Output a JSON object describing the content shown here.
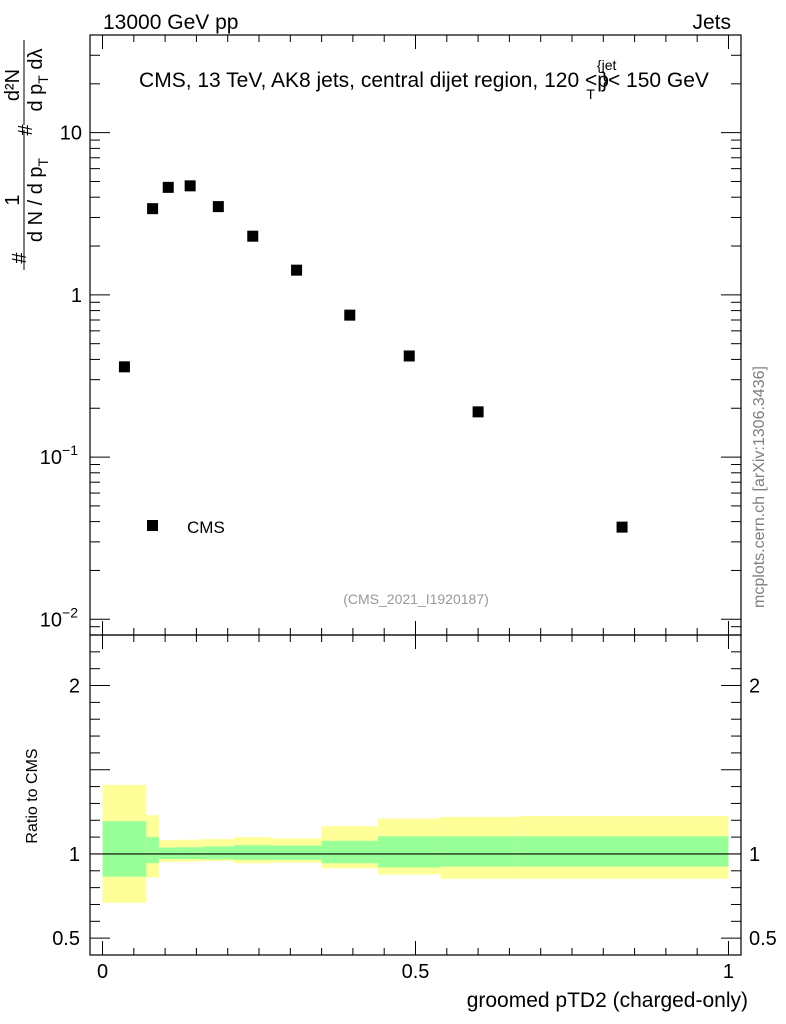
{
  "header": {
    "left": "13000 GeV pp",
    "right": "Jets"
  },
  "watermark": "mcplots.cern.ch [arXiv:1306.3436]",
  "chart_data": [
    {
      "type": "scatter",
      "panel": "main",
      "title": "CMS, 13 TeV, AK8 jets, central dijet region, 120 <p",
      "title_sup": "{jet",
      "title_sub": "T",
      "title_tail": "}< 150 GeV",
      "ylabel": {
        "prefix": "#",
        "frac_num": "1",
        "frac_den": "d N / d p",
        "frac_den_sub": "T",
        "hash": "#",
        "d2_num": "d²N",
        "d2_den": "d p",
        "d2_den_sub": "T",
        "d2_den_tail": " dλ"
      },
      "yscale": "log",
      "ylim": [
        0.008,
        40
      ],
      "xlim": [
        -0.02,
        1.02
      ],
      "yticks": [
        {
          "value": 10,
          "label": "10"
        },
        {
          "value": 1,
          "label": "1"
        },
        {
          "value": 0.1,
          "label": "10",
          "sup": "−1"
        },
        {
          "value": 0.01,
          "label": "10",
          "sup": "−2"
        }
      ],
      "series": [
        {
          "name": "CMS",
          "color": "#000000",
          "marker": "square",
          "x": [
            0.035,
            0.08,
            0.105,
            0.14,
            0.185,
            0.24,
            0.31,
            0.395,
            0.49,
            0.6,
            0.83
          ],
          "y": [
            0.36,
            3.4,
            4.6,
            4.7,
            3.5,
            2.3,
            1.42,
            0.75,
            0.42,
            0.19,
            0.037
          ]
        }
      ],
      "legend": {
        "label": "CMS",
        "position": "lower-left"
      },
      "analysis_label": "(CMS_2021_I1920187)"
    },
    {
      "type": "area",
      "panel": "ratio",
      "ylabel": "Ratio to CMS",
      "xlabel": "groomed pTD2 (charged-only)",
      "xlim": [
        -0.02,
        1.02
      ],
      "ylim": [
        0.4,
        2.3
      ],
      "yticks": [
        {
          "value": 2,
          "label": "2"
        },
        {
          "value": 1,
          "label": "1"
        },
        {
          "value": 0.5,
          "label": "0.5"
        }
      ],
      "xticks": [
        {
          "value": 0,
          "label": "0"
        },
        {
          "value": 0.5,
          "label": "0.5"
        },
        {
          "value": 1,
          "label": "1"
        }
      ],
      "reference_line": 1,
      "bins": [
        0,
        0.07,
        0.09,
        0.12,
        0.16,
        0.21,
        0.27,
        0.35,
        0.44,
        0.54,
        0.665,
        1.0
      ],
      "bands": [
        {
          "name": "total uncertainty",
          "color": "#ffff99",
          "lower": [
            0.71,
            0.86,
            0.953,
            0.955,
            0.958,
            0.945,
            0.948,
            0.915,
            0.878,
            0.852,
            0.852
          ],
          "upper": [
            1.41,
            1.23,
            1.082,
            1.085,
            1.088,
            1.1,
            1.092,
            1.165,
            1.21,
            1.22,
            1.225
          ]
        },
        {
          "name": "statistical uncertainty",
          "color": "#99ff99",
          "lower": [
            0.865,
            0.945,
            0.97,
            0.97,
            0.968,
            0.965,
            0.965,
            0.945,
            0.92,
            0.925,
            0.925
          ],
          "upper": [
            1.195,
            1.1,
            1.038,
            1.04,
            1.045,
            1.052,
            1.05,
            1.078,
            1.105,
            1.105,
            1.105
          ]
        }
      ]
    }
  ]
}
